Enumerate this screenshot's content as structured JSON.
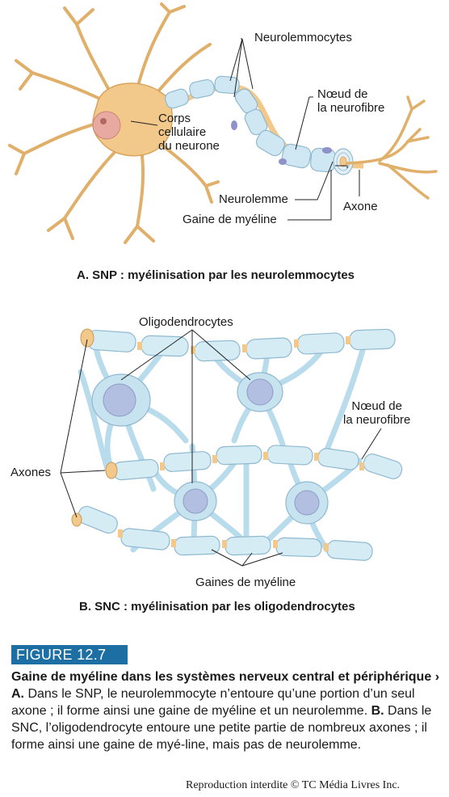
{
  "panel_a": {
    "labels": {
      "neurolemmocytes": "Neurolemmocytes",
      "corps": "Corps\ncellulaire\ndu neurone",
      "noeud": "Nœud de\nla neurofibre",
      "neurolemme": "Neurolemme",
      "axone": "Axone",
      "gaine": "Gaine de myéline"
    },
    "caption": "A. SNP : myélinisation par les neurolemmocytes"
  },
  "panel_b": {
    "labels": {
      "oligodendrocytes": "Oligodendrocytes",
      "noeud": "Nœud de\nla neurofibre",
      "axones": "Axones",
      "gaines": "Gaines de myéline"
    },
    "caption": "B. SNC : myélinisation par les oligodendrocytes"
  },
  "figure": {
    "tag": "FIGURE 12.7",
    "title": "Gaine de myéline dans les systèmes nerveux central et périphérique",
    "arrow": "›",
    "a_label": "A.",
    "a_text": " Dans le SNP, le neurolemmocyte n’entoure qu’une portion d’un seul axone ; il forme ainsi une gaine de myéline et un neurolemme. ",
    "b_label": "B.",
    "b_text": " Dans le SNC, l’oligodendrocyte entoure une petite partie de nombreux axones ; il forme ainsi une gaine de myé-line, mais pas de neurolemme."
  },
  "copyright": "Reproduction interdite © TC Média Livres Inc.",
  "colors": {
    "neuron": "#f2c98a",
    "neuron_stroke": "#d9a35c",
    "myelin": "#cfe7f2",
    "myelin_stroke": "#8fb9cf",
    "nucleus": "#a9b8db",
    "accent": "#1d6fa3"
  }
}
